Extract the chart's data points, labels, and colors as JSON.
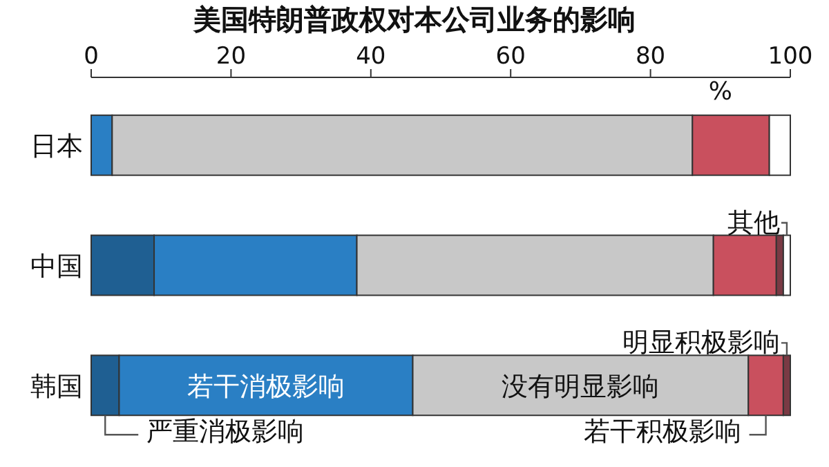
{
  "chart_data": {
    "type": "bar",
    "orientation": "horizontal",
    "stacked": true,
    "title": "美国特朗普政权对本公司业务的影响",
    "xlabel": "%",
    "categories": [
      "日本",
      "中国",
      "韩国"
    ],
    "xlim": [
      0,
      100
    ],
    "xticks": [
      0,
      20,
      40,
      60,
      80,
      100
    ],
    "series": [
      {
        "name": "严重消极影响",
        "color": "#1f5f92",
        "values": [
          0,
          9,
          4
        ]
      },
      {
        "name": "若干消极影响",
        "color": "#2a7fc4",
        "values": [
          3,
          29,
          42
        ]
      },
      {
        "name": "没有明显影响",
        "color": "#c8c8c8",
        "values": [
          83,
          51,
          48
        ]
      },
      {
        "name": "若干积极影响",
        "color": "#c9505e",
        "values": [
          11,
          9,
          5
        ]
      },
      {
        "name": "明显积极影响",
        "color": "#7a3a44",
        "values": [
          0,
          1,
          1
        ]
      },
      {
        "name": "其他",
        "color": "#ffffff",
        "values": [
          3,
          1,
          0
        ]
      }
    ]
  }
}
